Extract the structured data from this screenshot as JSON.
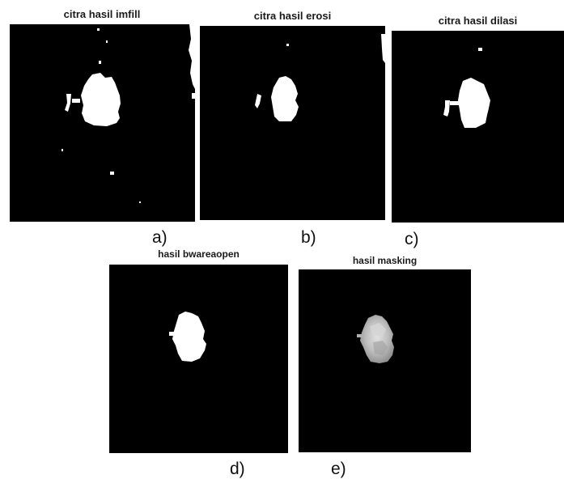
{
  "figure": {
    "panels": [
      {
        "id": "a",
        "title": "citra hasil imfill",
        "caption": "a)"
      },
      {
        "id": "b",
        "title": "citra hasil erosi",
        "caption": "b)"
      },
      {
        "id": "c",
        "title": "citra hasil dilasi",
        "caption": "c)"
      },
      {
        "id": "d",
        "title": "hasil bwareaopen",
        "caption": "d)"
      },
      {
        "id": "e",
        "title": "hasil masking",
        "caption": "e)"
      }
    ]
  }
}
